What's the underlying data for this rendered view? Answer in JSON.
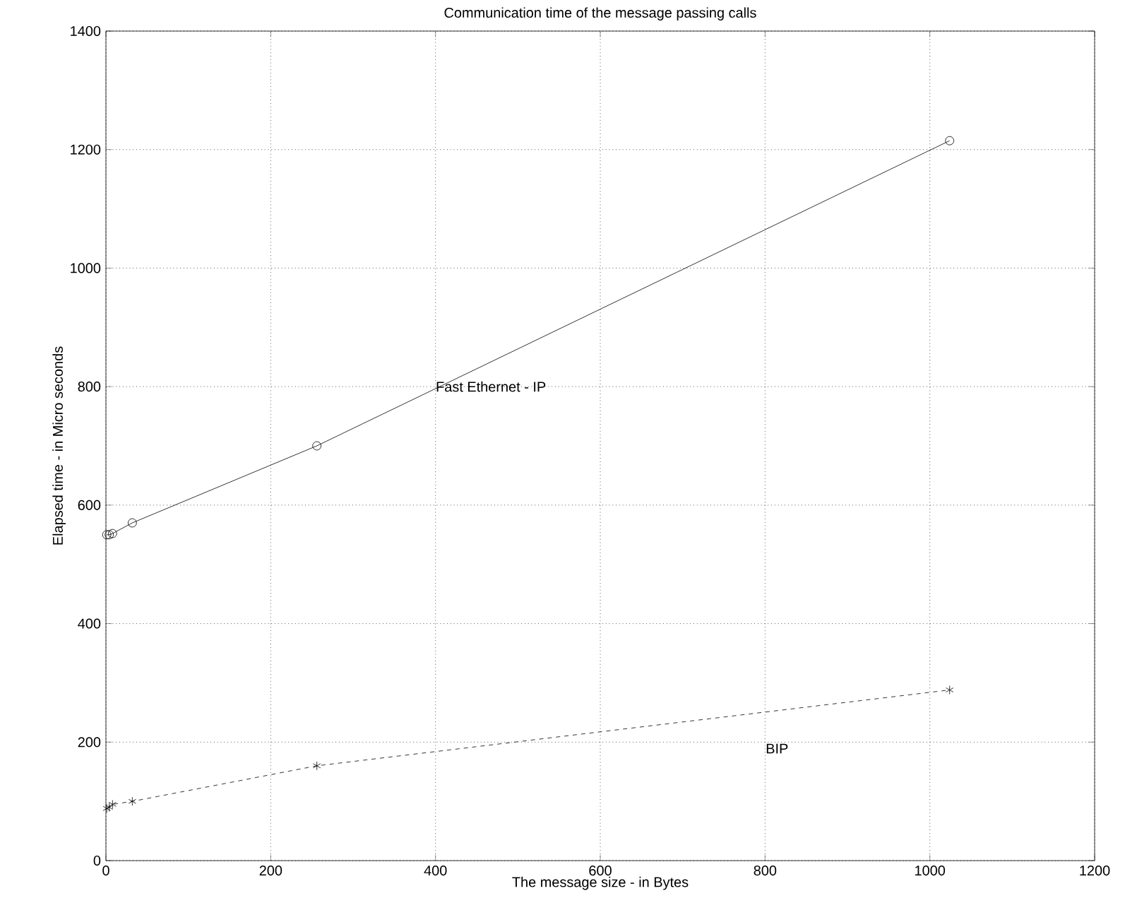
{
  "chart_data": {
    "type": "line",
    "title": "Communication time of the message passing calls",
    "xlabel": "The message size - in Bytes",
    "ylabel": "Elapsed time - in Micro seconds",
    "series": [
      {
        "x": [
          1,
          4,
          8,
          32,
          256,
          1024
        ],
        "values": [
          550,
          550,
          552,
          570,
          700,
          1215
        ],
        "color": "#000000",
        "marker": "circle",
        "line_style": "solid"
      },
      {
        "x": [
          1,
          4,
          8,
          32,
          256,
          1024
        ],
        "values": [
          88,
          90,
          95,
          100,
          160,
          288
        ],
        "color": "#000000",
        "marker": "cross",
        "line_style": "dashed"
      }
    ],
    "annotations": [
      {
        "text": "Fast Ethernet - IP",
        "x": 400,
        "y": 800
      },
      "BIP"
    ],
    "xlim": [
      0,
      1200
    ],
    "ylim": [
      0,
      1400
    ],
    "xticks": [
      0,
      200,
      400,
      600,
      800,
      1000,
      1200
    ],
    "yticks": [
      0,
      200,
      400,
      600,
      800,
      1000,
      1200,
      1400
    ],
    "grid": true
  }
}
